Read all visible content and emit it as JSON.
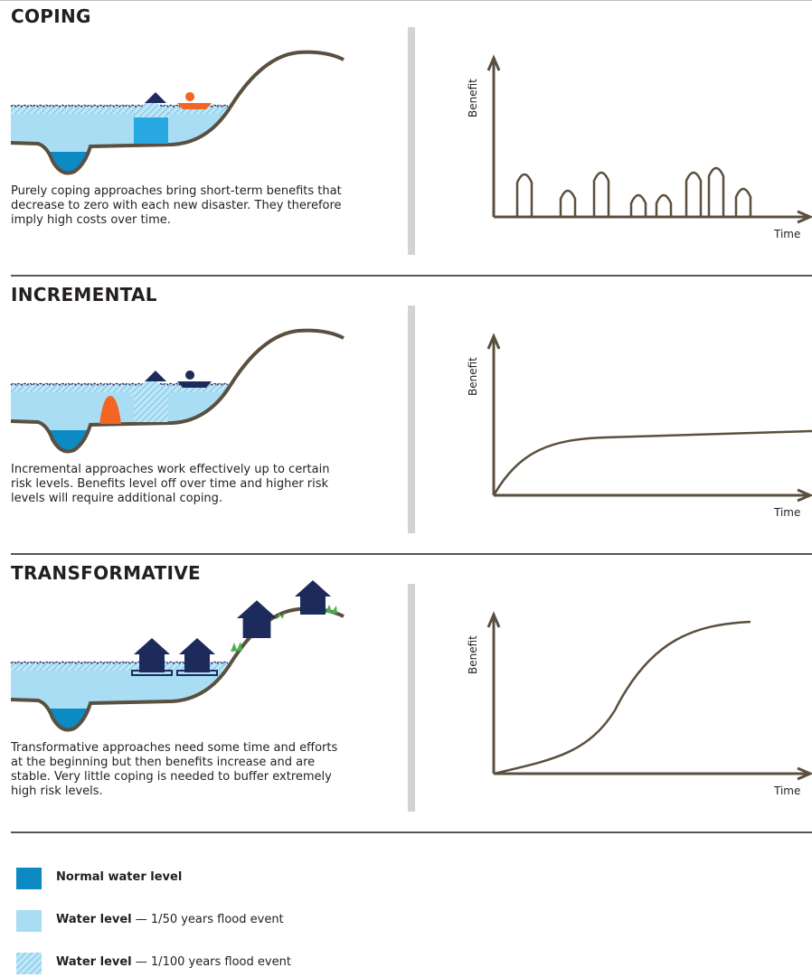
{
  "sections": [
    {
      "title": "COPING",
      "description": "Purely coping approaches bring short-term benefits that decrease to zero with each new disaster. They therefore imply high costs over time.",
      "y_axis_label": "Benefit",
      "x_axis_label": "Time"
    },
    {
      "title": "INCREMENTAL",
      "description": "Incremental approaches work effectively up to certain risk levels. Benefits level off over time and higher risk levels will require additional coping.",
      "y_axis_label": "Benefit",
      "x_axis_label": "Time"
    },
    {
      "title": "TRANSFORMATIVE",
      "description": "Transformative approaches need some time and efforts at the beginning but then benefits increase and are stable. Very little coping is needed to buffer extremely high risk levels.",
      "y_axis_label": "Benefit",
      "x_axis_label": "Time"
    }
  ],
  "legend": [
    {
      "label": "Normal water level"
    },
    {
      "label": "Water level",
      "detail": "— 1/50 years flood event"
    },
    {
      "label": "Water level",
      "detail": "— 1/100 years flood event"
    }
  ]
}
